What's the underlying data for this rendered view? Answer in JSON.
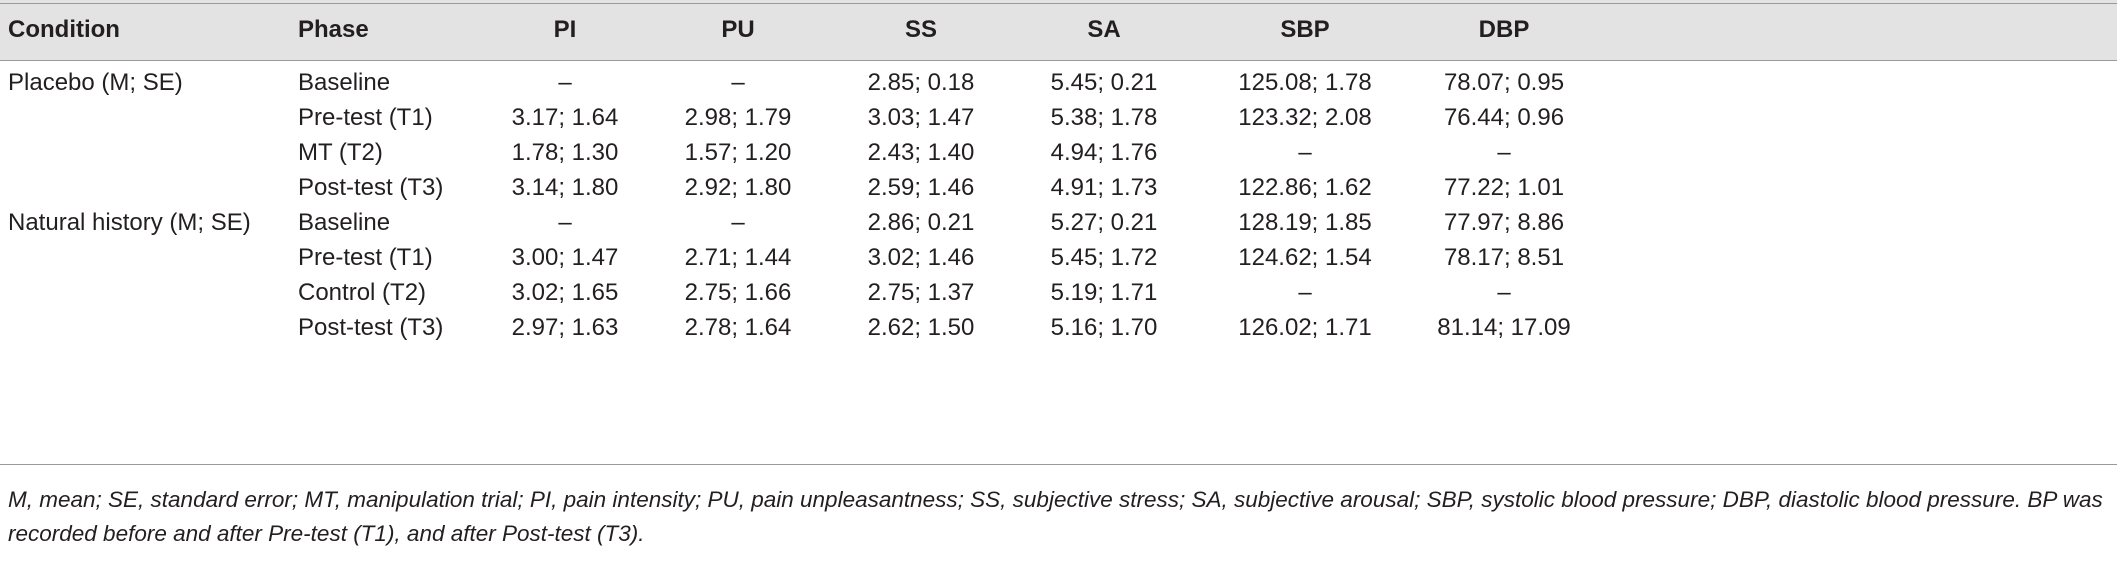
{
  "table": {
    "headers": [
      "Condition",
      "Phase",
      "PI",
      "PU",
      "SS",
      "SA",
      "SBP",
      "DBP"
    ],
    "rows": [
      {
        "condition": "Placebo (M; SE)",
        "phase": "Baseline",
        "pi": "–",
        "pu": "–",
        "ss": "2.85; 0.18",
        "sa": "5.45; 0.21",
        "sbp": "125.08; 1.78",
        "dbp": "78.07; 0.95"
      },
      {
        "condition": "",
        "phase": "Pre-test (T1)",
        "pi": "3.17; 1.64",
        "pu": "2.98; 1.79",
        "ss": "3.03; 1.47",
        "sa": "5.38; 1.78",
        "sbp": "123.32; 2.08",
        "dbp": "76.44; 0.96"
      },
      {
        "condition": "",
        "phase": "MT (T2)",
        "pi": "1.78; 1.30",
        "pu": "1.57; 1.20",
        "ss": "2.43; 1.40",
        "sa": "4.94; 1.76",
        "sbp": "–",
        "dbp": "–"
      },
      {
        "condition": "",
        "phase": "Post-test (T3)",
        "pi": "3.14; 1.80",
        "pu": "2.92; 1.80",
        "ss": "2.59; 1.46",
        "sa": "4.91; 1.73",
        "sbp": "122.86; 1.62",
        "dbp": "77.22; 1.01"
      },
      {
        "condition": "Natural history (M; SE)",
        "phase": "Baseline",
        "pi": "–",
        "pu": "–",
        "ss": "2.86; 0.21",
        "sa": "5.27; 0.21",
        "sbp": "128.19; 1.85",
        "dbp": "77.97; 8.86"
      },
      {
        "condition": "",
        "phase": "Pre-test (T1)",
        "pi": "3.00; 1.47",
        "pu": "2.71; 1.44",
        "ss": "3.02; 1.46",
        "sa": "5.45; 1.72",
        "sbp": "124.62; 1.54",
        "dbp": "78.17; 8.51"
      },
      {
        "condition": "",
        "phase": "Control (T2)",
        "pi": "3.02; 1.65",
        "pu": "2.75; 1.66",
        "ss": "2.75; 1.37",
        "sa": "5.19; 1.71",
        "sbp": "–",
        "dbp": "–"
      },
      {
        "condition": "",
        "phase": "Post-test (T3)",
        "pi": "2.97; 1.63",
        "pu": "2.78; 1.64",
        "ss": "2.62; 1.50",
        "sa": "5.16; 1.70",
        "sbp": "126.02; 1.71",
        "dbp": "81.14; 17.09"
      }
    ],
    "footnote": "M, mean; SE, standard error; MT, manipulation trial; PI, pain intensity; PU, pain unpleasantness; SS, subjective stress; SA, subjective arousal; SBP, systolic blood pressure; DBP, diastolic blood pressure. BP was recorded before and after Pre-test (T1), and after Post-test (T3)."
  }
}
